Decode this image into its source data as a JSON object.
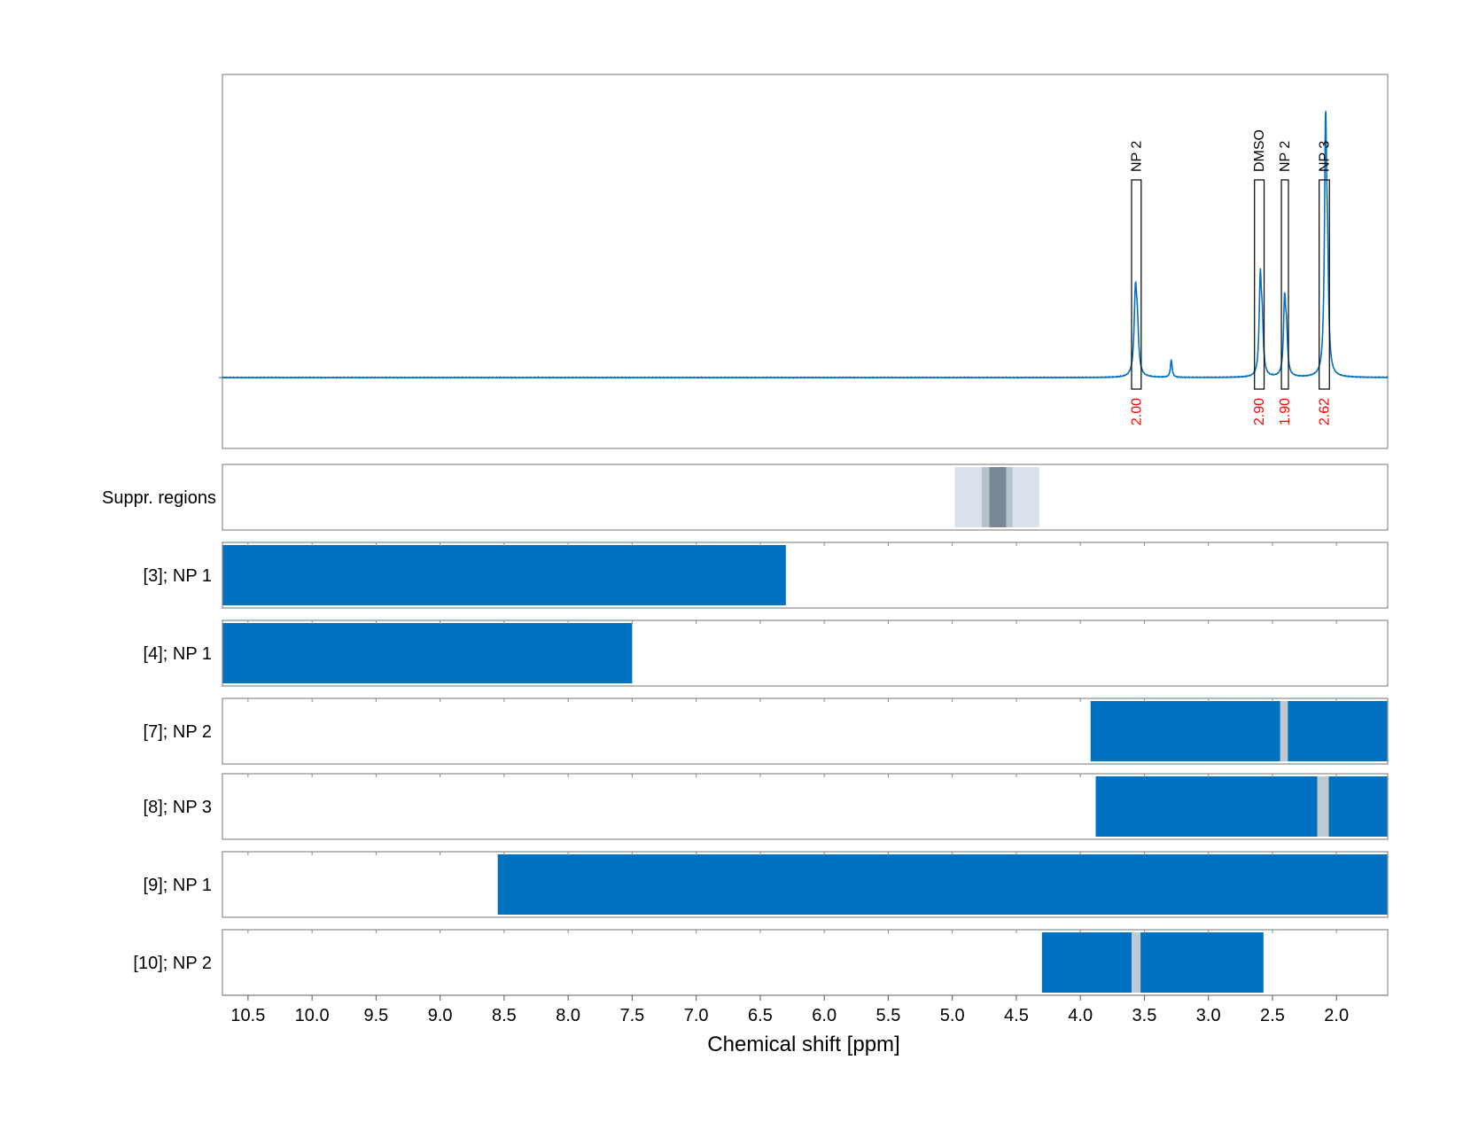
{
  "chart_data": {
    "type": "nmr-spectrum",
    "xlabel": "Chemical shift [ppm]",
    "xlim": [
      10.7,
      1.6
    ],
    "x_reversed": true,
    "xticks": [
      "10.5",
      "10.0",
      "9.5",
      "9.0",
      "8.5",
      "8.0",
      "7.5",
      "7.0",
      "6.5",
      "6.0",
      "5.5",
      "5.0",
      "4.5",
      "4.0",
      "3.5",
      "3.0",
      "2.5",
      "2.0"
    ],
    "grid": true,
    "colors": {
      "spectrum": "#0070c0",
      "bar": "#0070c0",
      "gap": "#c0c8d0",
      "integral": "#ff0000",
      "suppr_light": "#d9e2ea",
      "suppr_mid": "#b4c2ce",
      "suppr_dark": "#788894"
    },
    "spectrum_peaks": [
      {
        "x": 3.57,
        "height": 0.27,
        "width": 0.012
      },
      {
        "x": 3.555,
        "height": 0.14,
        "width": 0.012
      },
      {
        "x": 3.29,
        "height": 0.06,
        "width": 0.008
      },
      {
        "x": 2.595,
        "height": 0.32,
        "width": 0.01
      },
      {
        "x": 2.58,
        "height": 0.16,
        "width": 0.01
      },
      {
        "x": 2.405,
        "height": 0.25,
        "width": 0.01
      },
      {
        "x": 2.39,
        "height": 0.13,
        "width": 0.01
      },
      {
        "x": 2.085,
        "height": 0.83,
        "width": 0.01
      },
      {
        "x": 2.07,
        "height": 0.3,
        "width": 0.01
      }
    ],
    "annotations": [
      {
        "label": "NP 2",
        "x_range": [
          3.525,
          3.6
        ],
        "integral": "2.00"
      },
      {
        "label": "DMSO",
        "x_range": [
          2.565,
          2.64
        ],
        "integral": "2.90"
      },
      {
        "label": "NP 2",
        "x_range": [
          2.375,
          2.43
        ],
        "integral": "1.90"
      },
      {
        "label": "NP 3",
        "x_range": [
          2.055,
          2.135
        ],
        "integral": "2.62"
      }
    ],
    "suppr_regions": {
      "label": "Suppr. regions",
      "bands": [
        {
          "range": [
            4.98,
            4.32
          ],
          "shade": "light"
        },
        {
          "range": [
            4.77,
            4.53
          ],
          "shade": "mid"
        },
        {
          "range": [
            4.71,
            4.58
          ],
          "shade": "dark"
        }
      ]
    },
    "rows": [
      {
        "label": "[3]; NP 1",
        "segments": [
          [
            10.7,
            6.3
          ]
        ]
      },
      {
        "label": "[4]; NP 1",
        "segments": [
          [
            10.7,
            7.5
          ]
        ]
      },
      {
        "label": "[7]; NP 2",
        "segments": [
          [
            3.92,
            2.44
          ],
          [
            2.38,
            1.6
          ]
        ]
      },
      {
        "label": "[8]; NP 3",
        "segments": [
          [
            3.88,
            2.15
          ],
          [
            2.06,
            1.6
          ]
        ]
      },
      {
        "label": "[9]; NP 1",
        "segments": [
          [
            8.55,
            1.6
          ]
        ]
      },
      {
        "label": "[10]; NP 2",
        "segments": [
          [
            4.3,
            3.6
          ],
          [
            3.53,
            2.57
          ]
        ]
      }
    ]
  }
}
